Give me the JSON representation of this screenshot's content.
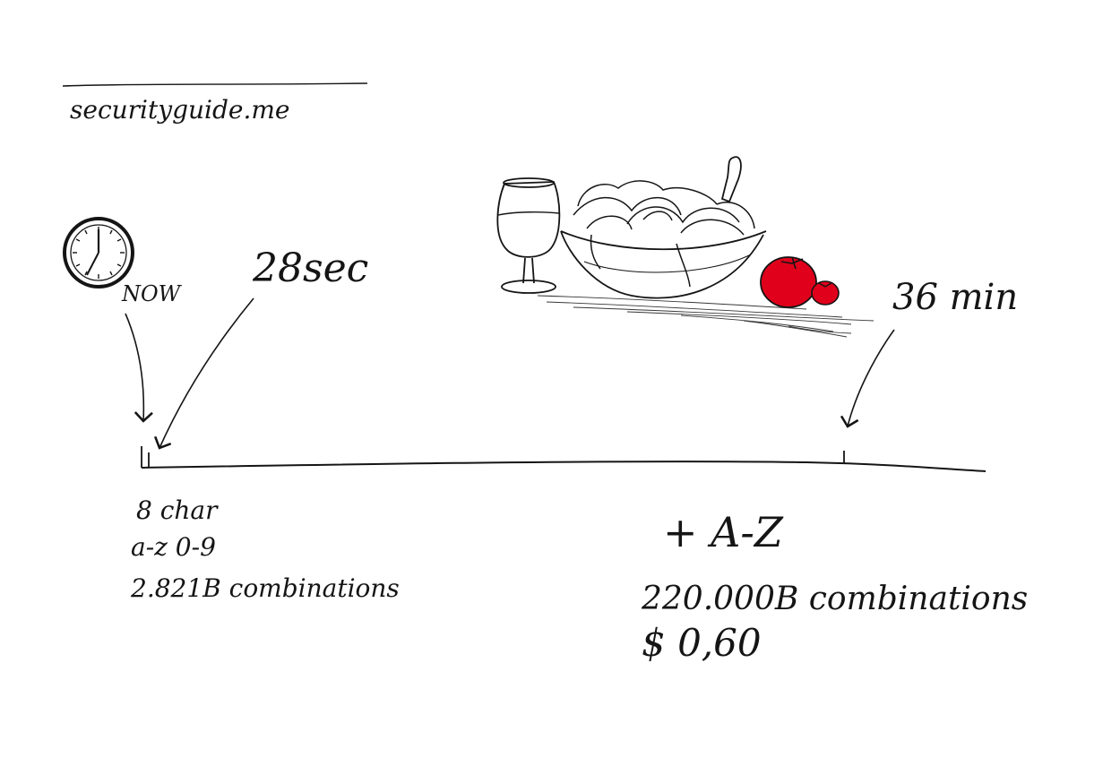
{
  "site": {
    "name": "securityguide.me"
  },
  "timeline": {
    "start_label": "NOW",
    "first_mark_label": "28sec",
    "second_mark_label": "36 min"
  },
  "left_block": {
    "line1": "8 char",
    "line2": "a-z 0-9",
    "line3": "2.821B combinations"
  },
  "right_block": {
    "line1": "+ A-Z",
    "line2": "220.000B combinations",
    "line3": "$ 0,60"
  },
  "drawing": {
    "icons": [
      "clock-icon",
      "wine-glass-icon",
      "spaghetti-bowl-icon",
      "fork-icon",
      "tomato-icon"
    ],
    "colors": {
      "ink": "#151515",
      "tomato": "#e0001b"
    }
  }
}
